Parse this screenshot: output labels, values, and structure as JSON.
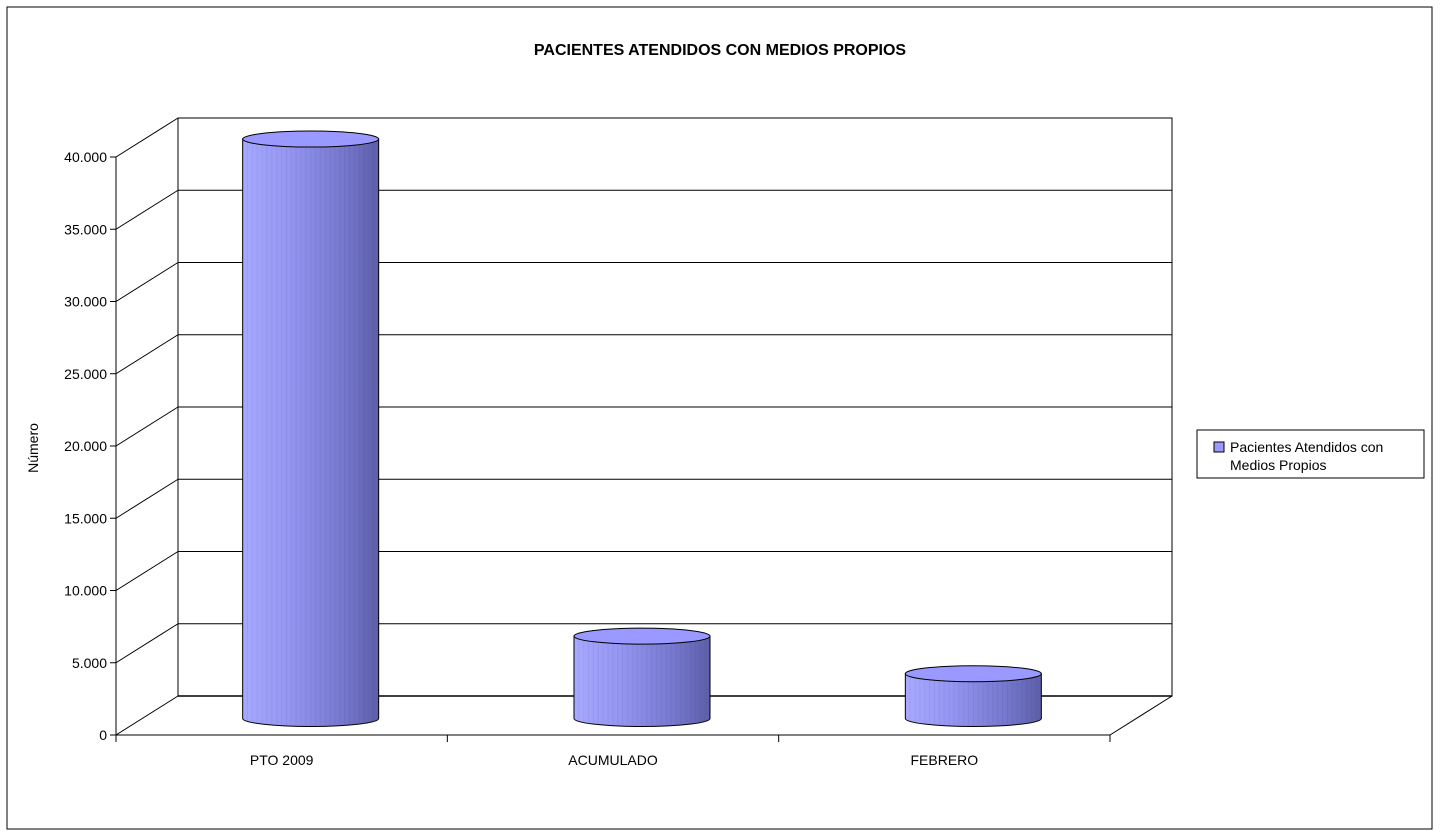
{
  "chart_data": {
    "type": "bar",
    "style": "3d-cylinder",
    "title": "PACIENTES ATENDIDOS CON MEDIOS PROPIOS",
    "xlabel": "",
    "ylabel": "Número",
    "categories": [
      "PTO 2009",
      "ACUMULADO",
      "FEBRERO"
    ],
    "series": [
      {
        "name": "Pacientes Atendidos con Medios Propios",
        "values": [
          40100,
          5700,
          3100
        ]
      }
    ],
    "ylim": [
      0,
      40000
    ],
    "yticks": [
      "0",
      "5.000",
      "10.000",
      "15.000",
      "20.000",
      "25.000",
      "30.000",
      "35.000",
      "40.000"
    ],
    "legend_lines": [
      "Pacientes Atendidos con",
      "Medios Propios"
    ],
    "legend_position": "right",
    "grid": true,
    "colors": {
      "bar_light": "#a4a6ff",
      "bar_mid": "#8a8ae6",
      "bar_dark": "#5f5faf",
      "bar_top": "#9999ff",
      "grid": "#000000",
      "floor": "#ffffff"
    }
  }
}
